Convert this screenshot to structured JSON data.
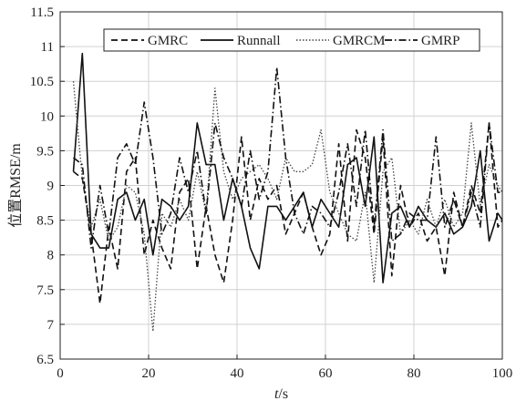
{
  "chart_data": {
    "type": "line",
    "xlabel_italic": "t",
    "xlabel_unit": "/s",
    "ylabel": "位置RMSE/m",
    "xlim": [
      0,
      100
    ],
    "ylim": [
      6.5,
      11.5
    ],
    "xticks": [
      0,
      20,
      40,
      60,
      80,
      100
    ],
    "yticks": [
      6.5,
      7,
      7.5,
      8,
      8.5,
      9,
      9.5,
      10,
      10.5,
      11,
      11.5
    ],
    "xtick_labels": [
      "0",
      "20",
      "40",
      "60",
      "80",
      "100"
    ],
    "ytick_labels": [
      "6.5",
      "7",
      "7.5",
      "8",
      "8.5",
      "9",
      "9.5",
      "10",
      "10.5",
      "11",
      "11.5"
    ],
    "grid": true,
    "legend_position": "top",
    "x": [
      3,
      5,
      7,
      9,
      11,
      13,
      15,
      17,
      19,
      21,
      23,
      25,
      27,
      29,
      31,
      33,
      35,
      37,
      39,
      41,
      43,
      45,
      47,
      49,
      51,
      53,
      55,
      57,
      59,
      61,
      63,
      65,
      67,
      69,
      71,
      73,
      75,
      77,
      79,
      81,
      83,
      85,
      87,
      89,
      91,
      93,
      95,
      97,
      99,
      100
    ],
    "series": [
      {
        "name": "GMRC",
        "style": "dashed",
        "color": "#111111",
        "values": [
          9.2,
          9.1,
          8.3,
          7.3,
          8.4,
          7.8,
          9.2,
          9.4,
          8.0,
          8.5,
          8.1,
          7.8,
          8.9,
          9.1,
          7.8,
          8.7,
          8.0,
          7.6,
          8.5,
          9.7,
          8.5,
          9.1,
          8.8,
          9.0,
          8.3,
          8.6,
          8.9,
          8.4,
          8.0,
          8.3,
          9.6,
          8.2,
          9.8,
          9.4,
          8.3,
          9.7,
          7.7,
          9.0,
          8.4,
          8.6,
          8.2,
          8.4,
          7.7,
          8.9,
          8.4,
          9.0,
          8.6,
          9.9,
          8.4,
          8.5
        ]
      },
      {
        "name": "Runnall",
        "style": "solid",
        "color": "#111111",
        "values": [
          9.2,
          10.9,
          8.3,
          8.1,
          8.1,
          8.8,
          8.9,
          8.5,
          8.8,
          8.0,
          8.8,
          8.7,
          8.5,
          8.7,
          9.9,
          9.3,
          9.3,
          8.5,
          9.1,
          8.7,
          8.1,
          7.8,
          8.7,
          8.7,
          8.5,
          8.7,
          8.9,
          8.4,
          8.8,
          8.6,
          8.4,
          9.3,
          9.4,
          8.7,
          9.7,
          7.6,
          8.6,
          8.7,
          8.4,
          8.7,
          8.5,
          8.4,
          8.6,
          8.3,
          8.4,
          8.7,
          9.5,
          8.2,
          8.6,
          8.5
        ]
      },
      {
        "name": "GMRCM",
        "style": "dotted",
        "color": "#444444",
        "values": [
          10.5,
          9.1,
          8.4,
          8.8,
          8.2,
          8.4,
          9.0,
          8.9,
          8.3,
          6.9,
          8.6,
          8.4,
          8.8,
          8.5,
          9.2,
          8.6,
          10.4,
          9.2,
          8.8,
          9.1,
          9.2,
          9.3,
          9.1,
          8.8,
          9.4,
          9.2,
          9.2,
          9.3,
          9.8,
          8.9,
          8.6,
          8.3,
          8.2,
          8.9,
          7.6,
          9.2,
          9.4,
          8.3,
          8.5,
          8.3,
          8.8,
          8.4,
          8.8,
          8.4,
          8.6,
          9.9,
          8.7,
          9.3,
          9.0,
          8.9
        ]
      },
      {
        "name": "GMRP",
        "style": "dashdot",
        "color": "#111111",
        "values": [
          9.4,
          9.3,
          8.1,
          9.0,
          8.3,
          9.4,
          9.6,
          9.3,
          10.2,
          9.4,
          8.3,
          8.6,
          9.4,
          8.9,
          9.5,
          8.6,
          9.9,
          9.4,
          9.1,
          8.7,
          9.5,
          8.8,
          9.2,
          10.7,
          9.4,
          8.6,
          8.3,
          8.7,
          8.6,
          8.4,
          8.9,
          9.6,
          8.7,
          9.8,
          8.4,
          9.8,
          8.2,
          8.3,
          8.6,
          8.5,
          8.5,
          9.7,
          8.4,
          8.8,
          8.4,
          8.9,
          8.4,
          9.9,
          8.9,
          8.9
        ]
      }
    ]
  }
}
